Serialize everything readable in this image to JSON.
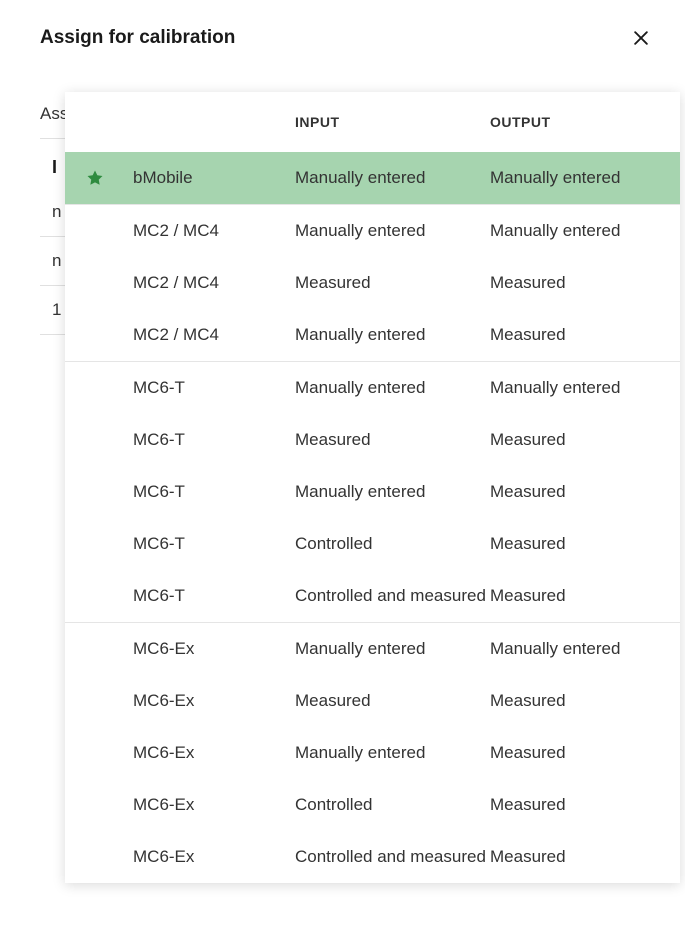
{
  "dialog": {
    "title": "Assign for calibration"
  },
  "background": {
    "label1": "Ass",
    "label2": "I",
    "label3": "n",
    "label4": "n",
    "label5": "1"
  },
  "table": {
    "headers": {
      "input": "INPUT",
      "output": "OUTPUT"
    },
    "groups": [
      {
        "rows": [
          {
            "device": "bMobile",
            "input": "Manually entered",
            "output": "Manually entered",
            "selected": true,
            "starred": true
          }
        ]
      },
      {
        "rows": [
          {
            "device": "MC2 / MC4",
            "input": "Manually entered",
            "output": "Manually entered",
            "selected": false,
            "starred": false
          },
          {
            "device": "MC2 / MC4",
            "input": "Measured",
            "output": "Measured",
            "selected": false,
            "starred": false
          },
          {
            "device": "MC2 / MC4",
            "input": "Manually entered",
            "output": "Measured",
            "selected": false,
            "starred": false
          }
        ]
      },
      {
        "rows": [
          {
            "device": "MC6-T",
            "input": "Manually entered",
            "output": "Manually entered",
            "selected": false,
            "starred": false
          },
          {
            "device": "MC6-T",
            "input": "Measured",
            "output": "Measured",
            "selected": false,
            "starred": false
          },
          {
            "device": "MC6-T",
            "input": "Manually entered",
            "output": "Measured",
            "selected": false,
            "starred": false
          },
          {
            "device": "MC6-T",
            "input": "Controlled",
            "output": "Measured",
            "selected": false,
            "starred": false
          },
          {
            "device": "MC6-T",
            "input": "Controlled and measured",
            "output": "Measured",
            "selected": false,
            "starred": false
          }
        ]
      },
      {
        "rows": [
          {
            "device": "MC6-Ex",
            "input": "Manually entered",
            "output": "Manually entered",
            "selected": false,
            "starred": false
          },
          {
            "device": "MC6-Ex",
            "input": "Measured",
            "output": "Measured",
            "selected": false,
            "starred": false
          },
          {
            "device": "MC6-Ex",
            "input": "Manually entered",
            "output": "Measured",
            "selected": false,
            "starred": false
          },
          {
            "device": "MC6-Ex",
            "input": "Controlled",
            "output": "Measured",
            "selected": false,
            "starred": false
          },
          {
            "device": "MC6-Ex",
            "input": "Controlled and measured",
            "output": "Measured",
            "selected": false,
            "starred": false
          }
        ]
      }
    ]
  },
  "colors": {
    "selected_bg": "#a6d4af",
    "star_fill": "#2e8b3f",
    "border": "#e5e5e5",
    "text": "#333333"
  }
}
